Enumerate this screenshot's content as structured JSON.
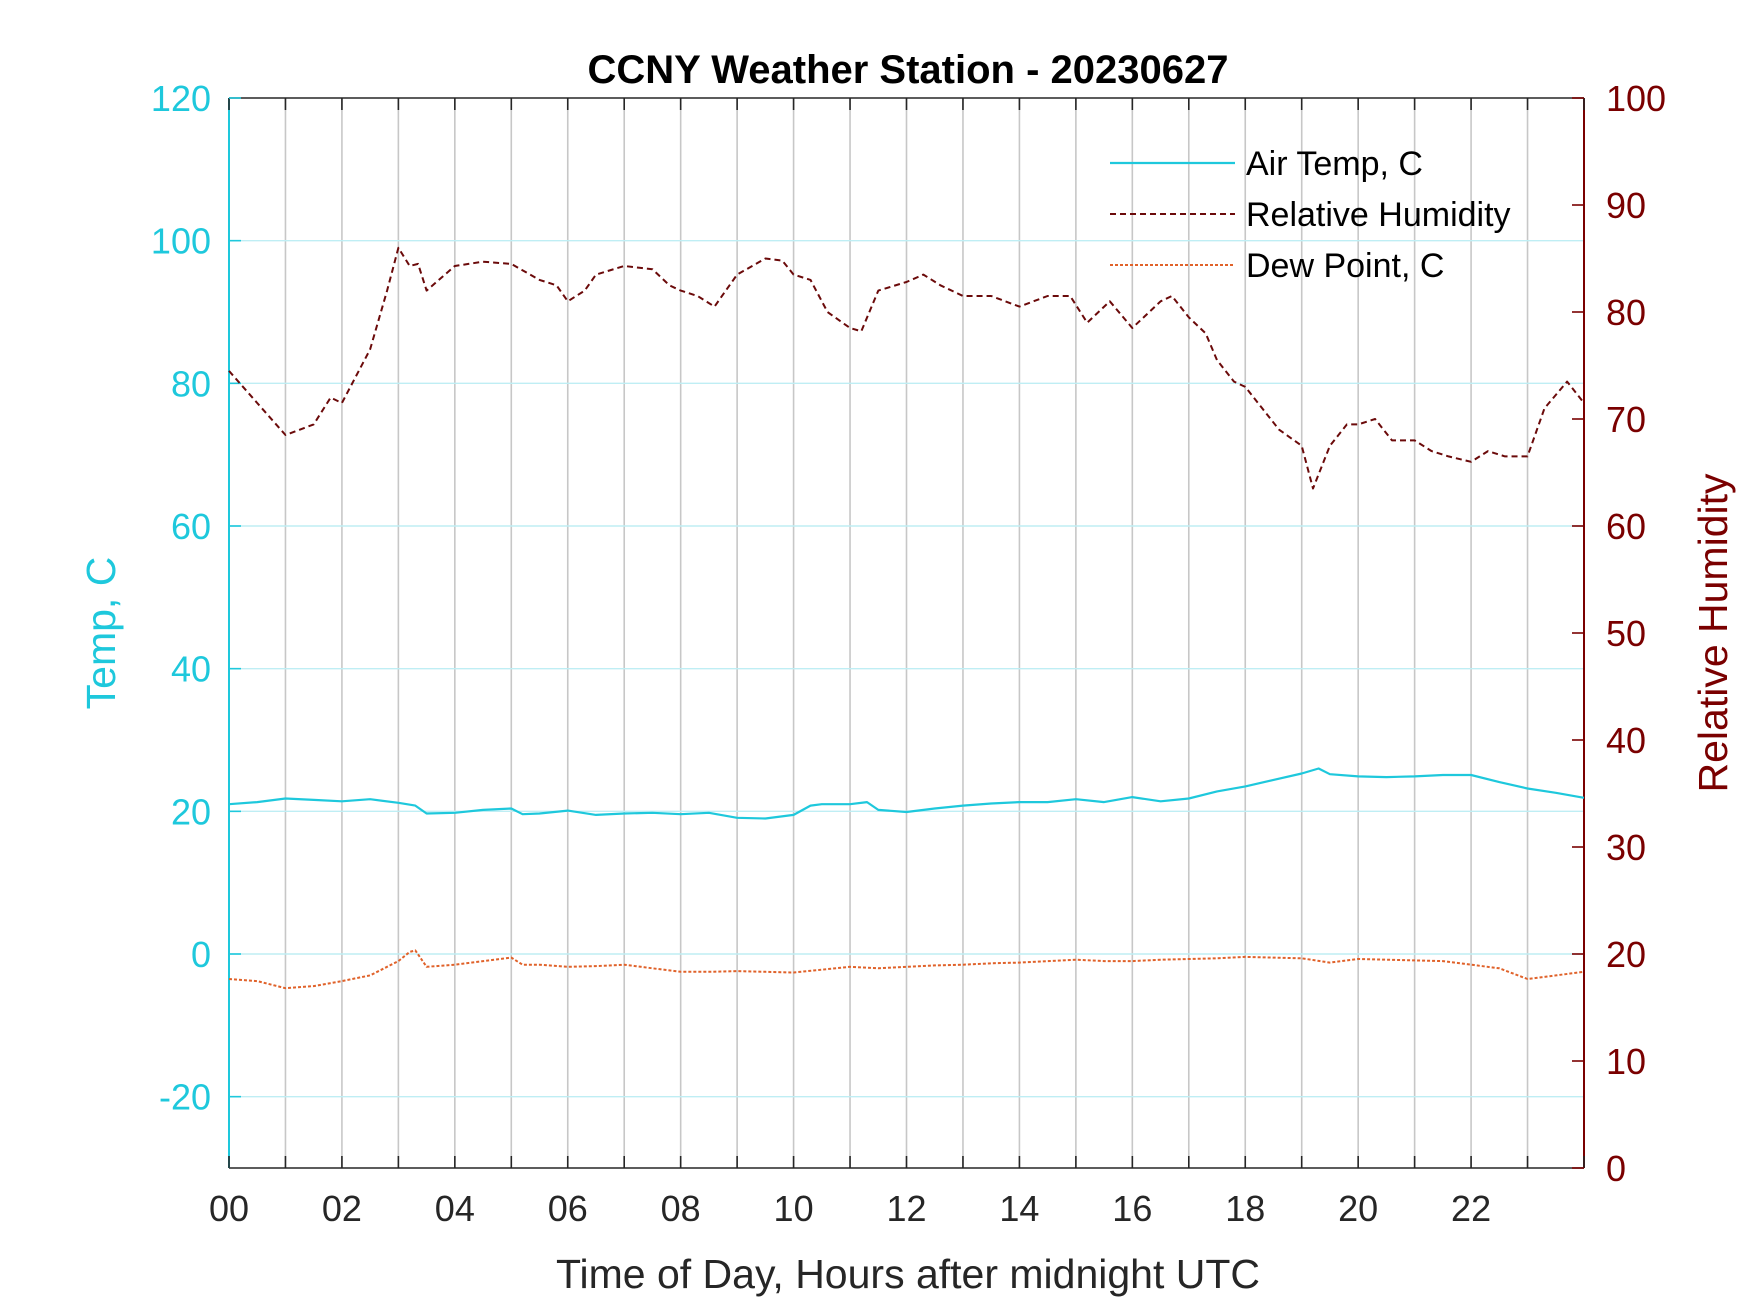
{
  "chart_data": {
    "type": "line",
    "title": "CCNY Weather Station - 20230627",
    "xlabel": "Time of Day, Hours after midnight UTC",
    "ylabel_left": "Temp, C",
    "ylabel_right": "Relative Humidity",
    "xlim": [
      0,
      24
    ],
    "ylim_left": [
      -30,
      120
    ],
    "ylim_right": [
      0,
      100
    ],
    "x_ticks": [
      "00",
      "02",
      "04",
      "06",
      "08",
      "10",
      "12",
      "14",
      "16",
      "18",
      "20",
      "22"
    ],
    "y_left_ticks": [
      -20,
      0,
      20,
      40,
      60,
      80,
      100,
      120
    ],
    "y_right_ticks": [
      0,
      10,
      20,
      30,
      40,
      50,
      60,
      70,
      80,
      90,
      100
    ],
    "grid": true,
    "legend_position": "top-right",
    "colors": {
      "left_axis": "#1ec8dc",
      "right_axis": "#7a0000",
      "air_temp": "#1ec8dc",
      "relative_humidity": "#6b0a0a",
      "dew_point": "#e0622a"
    },
    "series": [
      {
        "name": "Air Temp, C",
        "axis": "left",
        "style": "solid",
        "x": [
          0,
          0.5,
          1,
          1.5,
          2,
          2.5,
          3,
          3.3,
          3.5,
          4,
          4.5,
          5,
          5.2,
          5.5,
          6,
          6.5,
          7,
          7.5,
          8,
          8.5,
          9,
          9.5,
          10,
          10.3,
          10.5,
          11,
          11.3,
          11.5,
          12,
          12.5,
          13,
          13.5,
          14,
          14.5,
          15,
          15.5,
          16,
          16.5,
          17,
          17.5,
          18,
          18.5,
          19,
          19.3,
          19.5,
          20,
          20.5,
          21,
          21.5,
          22,
          22.5,
          23,
          23.5,
          24
        ],
        "y": [
          21.0,
          21.3,
          21.8,
          21.6,
          21.4,
          21.7,
          21.2,
          20.8,
          19.7,
          19.8,
          20.2,
          20.4,
          19.6,
          19.7,
          20.1,
          19.5,
          19.7,
          19.8,
          19.6,
          19.8,
          19.1,
          19.0,
          19.5,
          20.8,
          21.0,
          21.0,
          21.3,
          20.2,
          19.9,
          20.4,
          20.8,
          21.1,
          21.3,
          21.3,
          21.7,
          21.3,
          22.0,
          21.4,
          21.8,
          22.8,
          23.5,
          24.4,
          25.3,
          26.0,
          25.2,
          24.9,
          24.8,
          24.9,
          25.1,
          25.1,
          24.1,
          23.2,
          22.6,
          21.9
        ]
      },
      {
        "name": "Relative Humidity",
        "axis": "right",
        "style": "dashed",
        "x": [
          0,
          0.5,
          1,
          1.5,
          1.8,
          2,
          2.5,
          2.8,
          3,
          3.2,
          3.35,
          3.5,
          4,
          4.5,
          5,
          5.5,
          5.8,
          6,
          6.3,
          6.5,
          7,
          7.5,
          7.8,
          8,
          8.3,
          8.6,
          9,
          9.5,
          9.8,
          10,
          10.3,
          10.6,
          11,
          11.2,
          11.5,
          12,
          12.3,
          12.6,
          13,
          13.5,
          14,
          14.5,
          14.9,
          15.2,
          15.6,
          16,
          16.5,
          16.7,
          17,
          17.3,
          17.5,
          17.8,
          18,
          18.3,
          18.6,
          19,
          19.2,
          19.5,
          19.8,
          20,
          20.3,
          20.6,
          21,
          21.3,
          21.6,
          22,
          22.3,
          22.6,
          23,
          23.3,
          23.7,
          24
        ],
        "y": [
          74.5,
          71.5,
          68.5,
          69.5,
          72,
          71.5,
          76.5,
          82,
          86,
          84.3,
          84.5,
          82,
          84.3,
          84.7,
          84.5,
          83,
          82.5,
          81,
          82,
          83.5,
          84.3,
          84,
          82.5,
          82,
          81.5,
          80.5,
          83.5,
          85,
          84.8,
          83.5,
          83,
          80,
          78.5,
          78.2,
          82,
          82.8,
          83.5,
          82.5,
          81.5,
          81.5,
          80.5,
          81.5,
          81.5,
          79,
          81,
          78.5,
          81,
          81.5,
          79.5,
          78,
          75.5,
          73.5,
          73,
          71,
          69,
          67.5,
          63.5,
          67.5,
          69.5,
          69.5,
          70,
          68,
          68,
          67,
          66.5,
          66,
          67,
          66.5,
          66.5,
          71,
          73.5,
          71.5
        ]
      },
      {
        "name": "Dew Point, C",
        "axis": "left",
        "style": "dotted",
        "x": [
          0,
          0.5,
          1,
          1.5,
          2,
          2.5,
          3,
          3.2,
          3.3,
          3.5,
          4,
          4.5,
          5,
          5.2,
          5.5,
          6,
          6.5,
          7,
          7.5,
          8,
          8.5,
          9,
          9.5,
          10,
          10.5,
          11,
          11.5,
          12,
          12.5,
          13,
          13.5,
          14,
          14.5,
          15,
          15.5,
          16,
          16.5,
          17,
          17.5,
          18,
          18.5,
          19,
          19.5,
          20,
          20.5,
          21,
          21.5,
          22,
          22.5,
          23,
          23.5,
          24
        ],
        "y": [
          -3.5,
          -3.8,
          -4.8,
          -4.5,
          -3.8,
          -3.0,
          -1.0,
          0.3,
          0.5,
          -1.8,
          -1.5,
          -1.0,
          -0.5,
          -1.5,
          -1.5,
          -1.8,
          -1.7,
          -1.5,
          -2.0,
          -2.5,
          -2.5,
          -2.4,
          -2.5,
          -2.6,
          -2.2,
          -1.8,
          -2.0,
          -1.8,
          -1.6,
          -1.5,
          -1.3,
          -1.2,
          -1.0,
          -0.8,
          -1.0,
          -1.0,
          -0.8,
          -0.7,
          -0.6,
          -0.4,
          -0.5,
          -0.6,
          -1.2,
          -0.7,
          -0.8,
          -0.9,
          -1.0,
          -1.5,
          -2.0,
          -3.5,
          -3.0,
          -2.5
        ]
      }
    ]
  }
}
